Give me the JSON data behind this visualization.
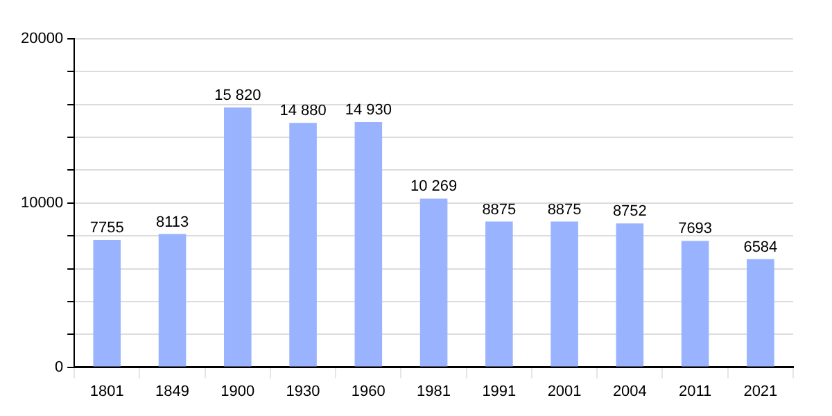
{
  "chart_data": {
    "type": "bar",
    "categories": [
      "1801",
      "1849",
      "1900",
      "1930",
      "1960",
      "1981",
      "1991",
      "2001",
      "2004",
      "2011",
      "2021"
    ],
    "values": [
      7755,
      8113,
      15820,
      14880,
      14930,
      10269,
      8875,
      8875,
      8752,
      7693,
      6584
    ],
    "value_labels": [
      "7755",
      "8113",
      "15 820",
      "14 880",
      "14 930",
      "10 269",
      "8875",
      "8875",
      "8752",
      "7693",
      "6584"
    ],
    "color": "#99b3ff",
    "ylim": [
      0,
      20000
    ],
    "yticks": [
      0,
      {
        "value": 2000,
        "label": null
      },
      {
        "value": 4000,
        "label": null
      },
      {
        "value": 6000,
        "label": null
      },
      {
        "value": 8000,
        "label": null
      },
      10000,
      {
        "value": 12000,
        "label": null
      },
      {
        "value": 14000,
        "label": null
      },
      {
        "value": 16000,
        "label": null
      },
      {
        "value": 18000,
        "label": null
      },
      20000
    ],
    "grid": true,
    "legend": false
  }
}
